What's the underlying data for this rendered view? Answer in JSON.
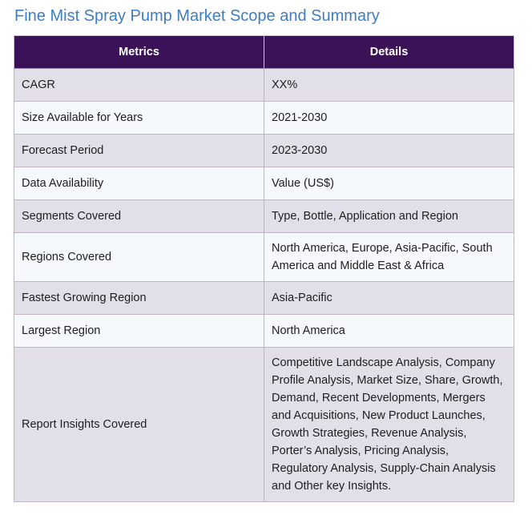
{
  "title": "Fine Mist Spray Pump Market Scope and Summary",
  "table": {
    "headers": [
      "Metrics",
      "Details"
    ],
    "rows": [
      {
        "metric": "CAGR",
        "detail": "XX%"
      },
      {
        "metric": "Size Available for Years",
        "detail": "2021-2030"
      },
      {
        "metric": "Forecast Period",
        "detail": "2023-2030"
      },
      {
        "metric": "Data Availability",
        "detail": "Value (US$)"
      },
      {
        "metric": "Segments Covered",
        "detail": "Type, Bottle, Application and Region"
      },
      {
        "metric": "Regions Covered",
        "detail": "North America, Europe, Asia-Pacific, South America and Middle East & Africa"
      },
      {
        "metric": "Fastest Growing Region",
        "detail": "Asia-Pacific"
      },
      {
        "metric": "Largest Region",
        "detail": "North America"
      },
      {
        "metric": "Report Insights Covered",
        "detail": "Competitive Landscape Analysis, Company Profile Analysis, Market Size, Share, Growth, Demand, Recent Developments, Mergers and Acquisitions, New Product Launches, Growth Strategies, Revenue Analysis, Porter’s Analysis, Pricing Analysis, Regulatory Analysis, Supply-Chain Analysis and Other key Insights."
      }
    ]
  },
  "colors": {
    "title": "#3f7cc0",
    "header_bg": "#3b1257",
    "row_odd": "#e3dfe9",
    "row_even": "#f5f9fb"
  }
}
